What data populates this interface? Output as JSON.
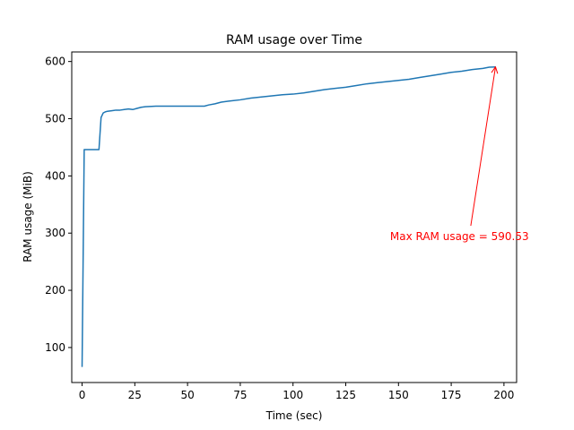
{
  "chart_data": {
    "type": "line",
    "title": "RAM usage over Time",
    "xlabel": "Time (sec)",
    "ylabel": "RAM usage (MiB)",
    "xlim": [
      -4.9,
      206
    ],
    "ylim": [
      38.8,
      616.7
    ],
    "xticks": [
      0,
      25,
      50,
      75,
      100,
      125,
      150,
      175,
      200
    ],
    "yticks": [
      100,
      200,
      300,
      400,
      500,
      600
    ],
    "grid": false,
    "series": [
      {
        "color": "#1f77b4",
        "x": [
          0,
          1,
          2,
          3,
          4,
          5,
          6,
          7,
          8,
          9,
          10,
          11,
          12,
          14,
          16,
          18,
          20,
          22,
          24,
          26,
          28,
          30,
          35,
          40,
          45,
          50,
          55,
          58,
          60,
          63,
          66,
          70,
          75,
          80,
          85,
          90,
          95,
          100,
          105,
          110,
          115,
          120,
          125,
          130,
          135,
          140,
          145,
          150,
          155,
          160,
          165,
          170,
          175,
          180,
          185,
          190,
          193,
          196
        ],
        "y": [
          66,
          446,
          446,
          446,
          446,
          446,
          446,
          446,
          446,
          502,
          510,
          512,
          513,
          514,
          515,
          515,
          516,
          517,
          516,
          518,
          520,
          521,
          522,
          522,
          522,
          522,
          522,
          522,
          524,
          526,
          529,
          531,
          533,
          536,
          538,
          540,
          542,
          543,
          545,
          548,
          551,
          553,
          555,
          558,
          561,
          563,
          565,
          567,
          569,
          572,
          575,
          578,
          581,
          583,
          586,
          588,
          590,
          590.53
        ]
      }
    ],
    "annotations": [
      {
        "text": "Max RAM usage = 590.53",
        "color": "#ff0000",
        "xy": [
          196,
          590.53
        ],
        "xytext": [
          146,
          294
        ]
      }
    ]
  }
}
